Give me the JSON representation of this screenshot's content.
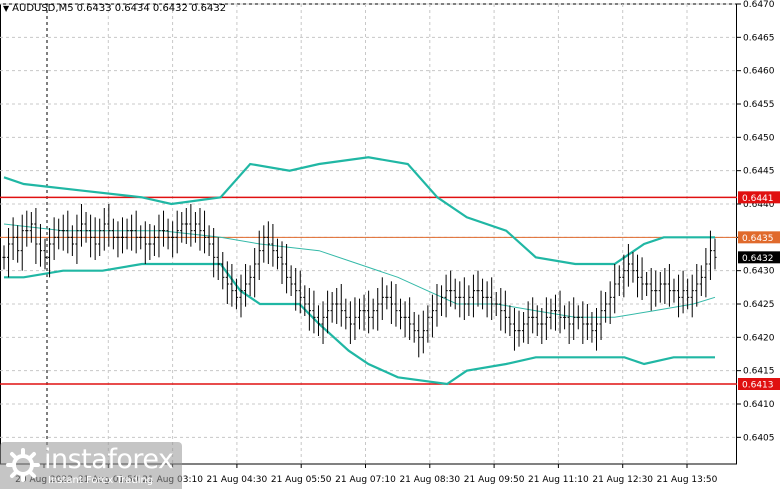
{
  "header": {
    "symbol": "AUDUSD,M5",
    "ohlc": "0.6433 0.6434 0.6432 0.6432"
  },
  "watermark": {
    "brand": "instaforex",
    "tagline": "Instant Forex Trading"
  },
  "colors": {
    "background": "#ffffff",
    "grid": "#c8c8c8",
    "bollinger": "#20b7a4",
    "ma": "#34b9a8",
    "support_resistance": "#e01010",
    "level_mid": "#e06a2c",
    "candle": "#000000"
  },
  "chart_data": {
    "type": "candlestick",
    "symbol": "AUDUSD",
    "timeframe": "M5",
    "ylim": [
      0.6401,
      0.647
    ],
    "y_ticks": [
      "0.6405",
      "0.6410",
      "0.6415",
      "0.6420",
      "0.6425",
      "0.6430",
      "0.6435",
      "0.6440",
      "0.6445",
      "0.6450",
      "0.6455",
      "0.6460",
      "0.6465",
      "0.6470"
    ],
    "x_ticks": [
      "20 Aug 2023",
      "21 Aug 01:50",
      "21 Aug 03:10",
      "21 Aug 04:30",
      "21 Aug 05:50",
      "21 Aug 07:10",
      "21 Aug 08:30",
      "21 Aug 09:50",
      "21 Aug 11:10",
      "21 Aug 12:30",
      "21 Aug 13:50"
    ],
    "horizontal_levels": [
      {
        "value": 0.6441,
        "label": "0.6441",
        "style": "support_resistance"
      },
      {
        "value": 0.6435,
        "label": "0.6435",
        "style": "level_mid"
      },
      {
        "value": 0.6413,
        "label": "0.6413",
        "style": "support_resistance"
      }
    ],
    "current_price": {
      "value": 0.6432,
      "label": "0.6432"
    },
    "closes": [
      0.6432,
      0.6434,
      0.6435,
      0.6433,
      0.6436,
      0.6436,
      0.6437,
      0.6434,
      0.6433,
      0.6432,
      0.6434,
      0.6435,
      0.6436,
      0.6436,
      0.6435,
      0.6434,
      0.6436,
      0.6437,
      0.6436,
      0.6435,
      0.6434,
      0.6436,
      0.6437,
      0.6436,
      0.6435,
      0.6435,
      0.6435,
      0.6436,
      0.6436,
      0.6435,
      0.6435,
      0.6434,
      0.6434,
      0.6435,
      0.6436,
      0.6436,
      0.6435,
      0.6435,
      0.6436,
      0.6437,
      0.6437,
      0.6436,
      0.6437,
      0.6436,
      0.6435,
      0.6434,
      0.6432,
      0.6431,
      0.6429,
      0.6428,
      0.6427,
      0.6426,
      0.6427,
      0.6428,
      0.6429,
      0.6431,
      0.6433,
      0.6435,
      0.6434,
      0.6433,
      0.6432,
      0.6431,
      0.6429,
      0.6428,
      0.6427,
      0.6426,
      0.6425,
      0.6424,
      0.6423,
      0.6422,
      0.6423,
      0.6424,
      0.6425,
      0.6425,
      0.6424,
      0.6423,
      0.6422,
      0.6423,
      0.6424,
      0.6424,
      0.6423,
      0.6424,
      0.6425,
      0.6426,
      0.6426,
      0.6425,
      0.6424,
      0.6423,
      0.6423,
      0.6422,
      0.6421,
      0.642,
      0.6421,
      0.6423,
      0.6424,
      0.6425,
      0.6426,
      0.6427,
      0.6427,
      0.6426,
      0.6426,
      0.6425,
      0.6426,
      0.6427,
      0.6427,
      0.6426,
      0.6426,
      0.6425,
      0.6425,
      0.6424,
      0.6423,
      0.6422,
      0.6421,
      0.6421,
      0.6422,
      0.6423,
      0.6423,
      0.6422,
      0.6422,
      0.6423,
      0.6424,
      0.6424,
      0.6423,
      0.6423,
      0.6422,
      0.6423,
      0.6423,
      0.6422,
      0.6422,
      0.6421,
      0.6422,
      0.6424,
      0.6425,
      0.6426,
      0.6428,
      0.6429,
      0.643,
      0.6431,
      0.643,
      0.6429,
      0.6428,
      0.6428,
      0.6427,
      0.6427,
      0.6428,
      0.6428,
      0.6427,
      0.6427,
      0.6426,
      0.6427,
      0.6426,
      0.6427,
      0.6428,
      0.6429,
      0.6431,
      0.6433,
      0.6432
    ],
    "bollinger_upper": [
      [
        0,
        0.6444
      ],
      [
        20,
        0.6443
      ],
      [
        80,
        0.6442
      ],
      [
        140,
        0.6441
      ],
      [
        170,
        0.644
      ],
      [
        220,
        0.6441
      ],
      [
        250,
        0.6446
      ],
      [
        290,
        0.6445
      ],
      [
        320,
        0.6446
      ],
      [
        370,
        0.6447
      ],
      [
        410,
        0.6446
      ],
      [
        440,
        0.6441
      ],
      [
        470,
        0.6438
      ],
      [
        510,
        0.6436
      ],
      [
        540,
        0.6432
      ],
      [
        580,
        0.6431
      ],
      [
        620,
        0.6431
      ],
      [
        650,
        0.6434
      ],
      [
        670,
        0.6435
      ],
      [
        700,
        0.6435
      ],
      [
        722,
        0.6435
      ]
    ],
    "bollinger_middle": [
      [
        0,
        0.6437
      ],
      [
        60,
        0.6436
      ],
      [
        120,
        0.6436
      ],
      [
        160,
        0.6436
      ],
      [
        220,
        0.6435
      ],
      [
        260,
        0.6434
      ],
      [
        320,
        0.6433
      ],
      [
        360,
        0.6431
      ],
      [
        400,
        0.6429
      ],
      [
        430,
        0.6427
      ],
      [
        460,
        0.6425
      ],
      [
        500,
        0.6425
      ],
      [
        540,
        0.6424
      ],
      [
        580,
        0.6423
      ],
      [
        620,
        0.6423
      ],
      [
        660,
        0.6424
      ],
      [
        700,
        0.6425
      ],
      [
        722,
        0.6426
      ]
    ],
    "bollinger_lower": [
      [
        0,
        0.6429
      ],
      [
        20,
        0.6429
      ],
      [
        60,
        0.643
      ],
      [
        100,
        0.643
      ],
      [
        140,
        0.6431
      ],
      [
        220,
        0.6431
      ],
      [
        240,
        0.6427
      ],
      [
        260,
        0.6425
      ],
      [
        300,
        0.6425
      ],
      [
        320,
        0.6422
      ],
      [
        350,
        0.6418
      ],
      [
        370,
        0.6416
      ],
      [
        400,
        0.6414
      ],
      [
        450,
        0.6413
      ],
      [
        470,
        0.6415
      ],
      [
        510,
        0.6416
      ],
      [
        540,
        0.6417
      ],
      [
        600,
        0.6417
      ],
      [
        630,
        0.6417
      ],
      [
        650,
        0.6416
      ],
      [
        680,
        0.6417
      ],
      [
        722,
        0.6417
      ]
    ]
  }
}
